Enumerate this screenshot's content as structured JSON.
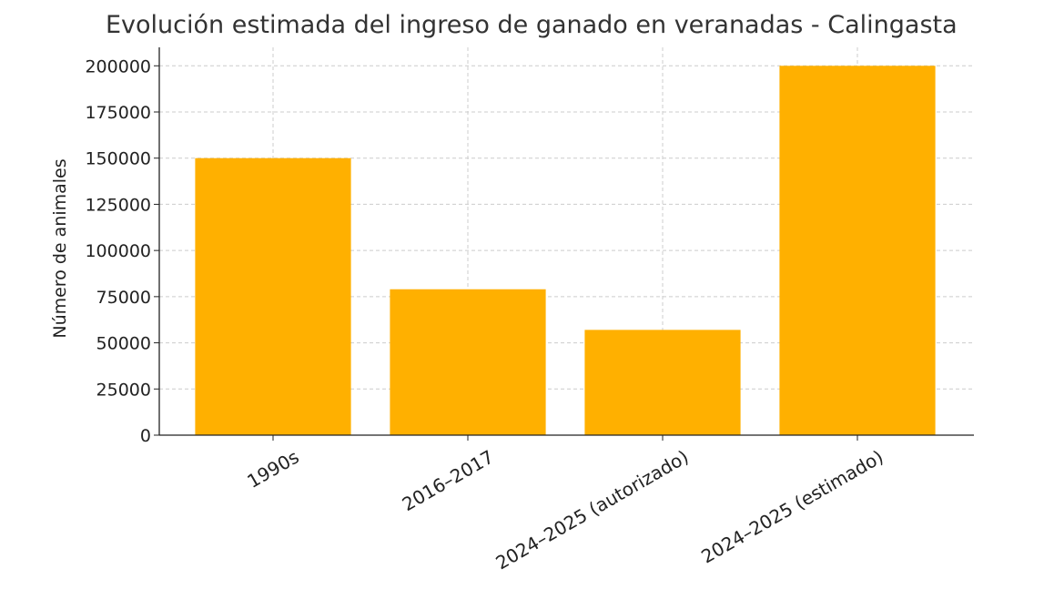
{
  "chart_data": {
    "type": "bar",
    "title": "Evolución estimada del ingreso de ganado en veranadas - Calingasta",
    "xlabel": "",
    "ylabel": "Número de animales",
    "categories": [
      "1990s",
      "2016–2017",
      "2024–2025 (autorizado)",
      "2024–2025 (estimado)"
    ],
    "values": [
      150000,
      79000,
      57000,
      200000
    ],
    "ylim": [
      0,
      210000
    ],
    "yticks": [
      0,
      25000,
      50000,
      75000,
      100000,
      125000,
      150000,
      175000,
      200000
    ],
    "grid": true,
    "bar_color": "#FFB000"
  }
}
